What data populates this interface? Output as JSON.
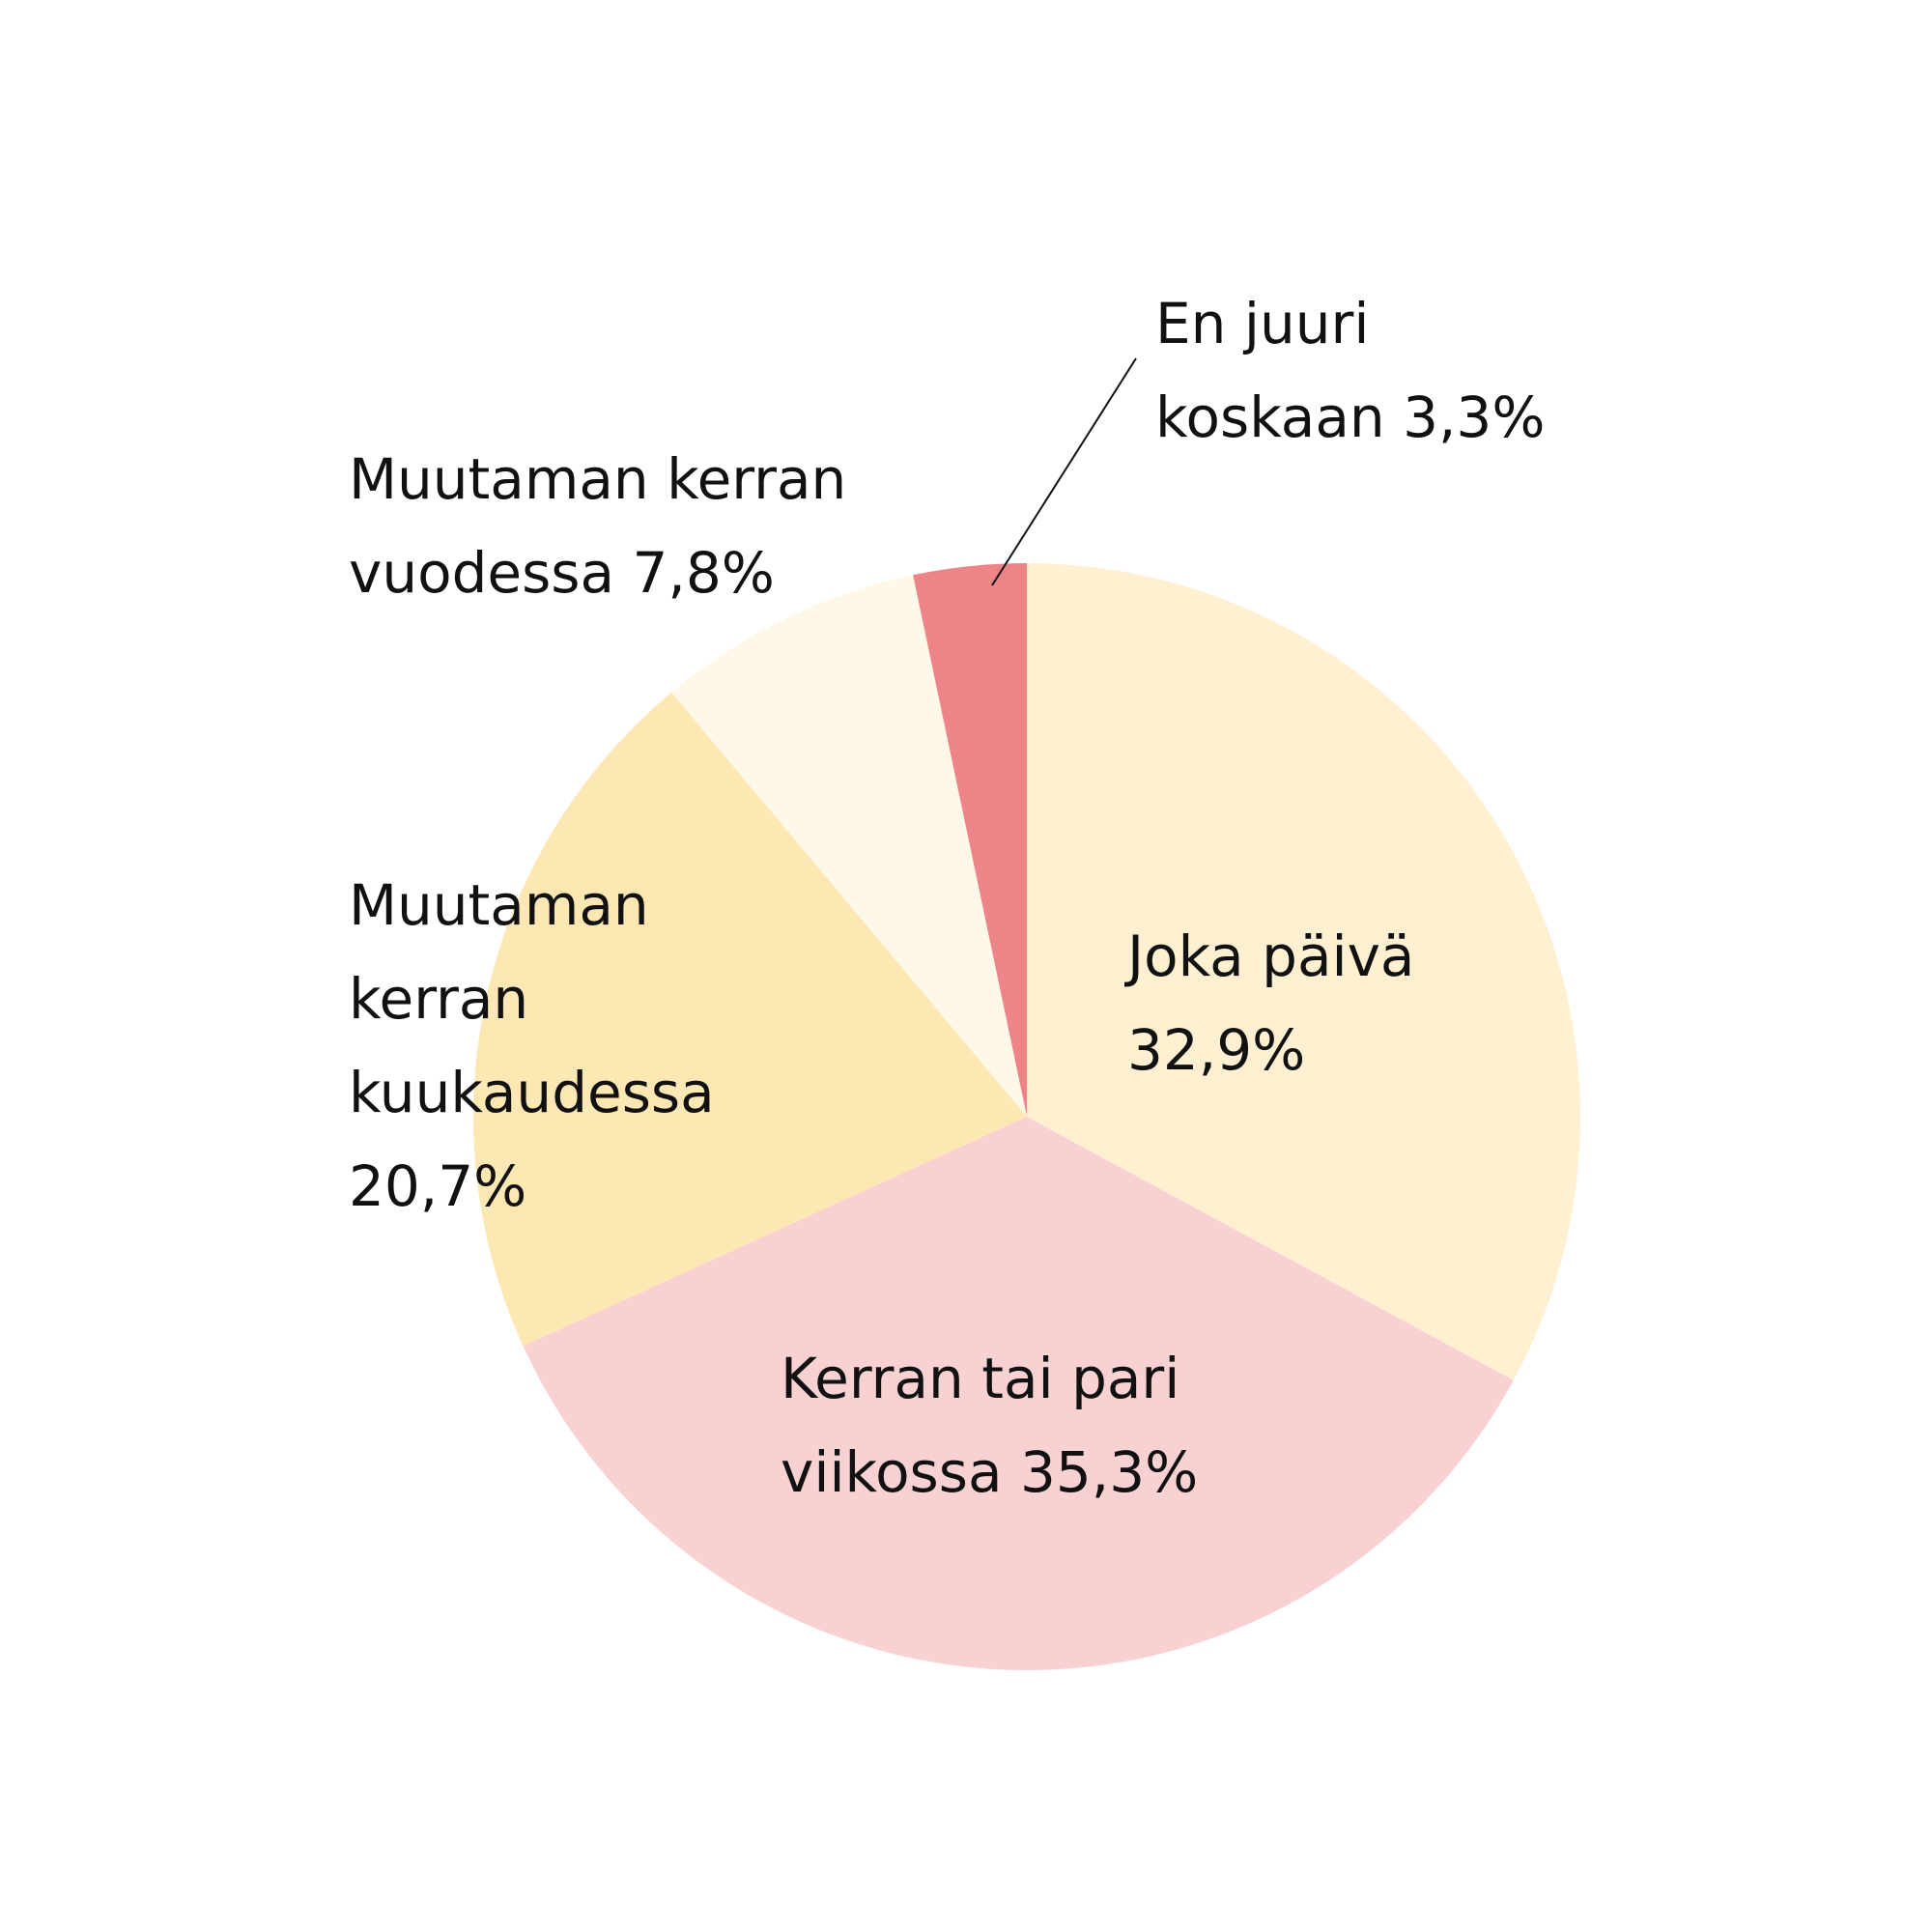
{
  "chart_data": {
    "type": "pie",
    "categories": [
      "Joka päivä",
      "Kerran tai pari viikossa",
      "Muutaman kerran kuukaudessa",
      "Muutaman kerran vuodessa",
      "En juuri koskaan"
    ],
    "values": [
      32.9,
      35.3,
      20.7,
      7.8,
      3.3
    ],
    "value_labels": [
      "32,9%",
      "35,3%",
      "20,7%",
      "7,8%",
      "3,3%"
    ],
    "colors": [
      "#fff0d2",
      "#f8d2d2",
      "#fde8b4",
      "#fef8e8",
      "#ee8388"
    ]
  }
}
